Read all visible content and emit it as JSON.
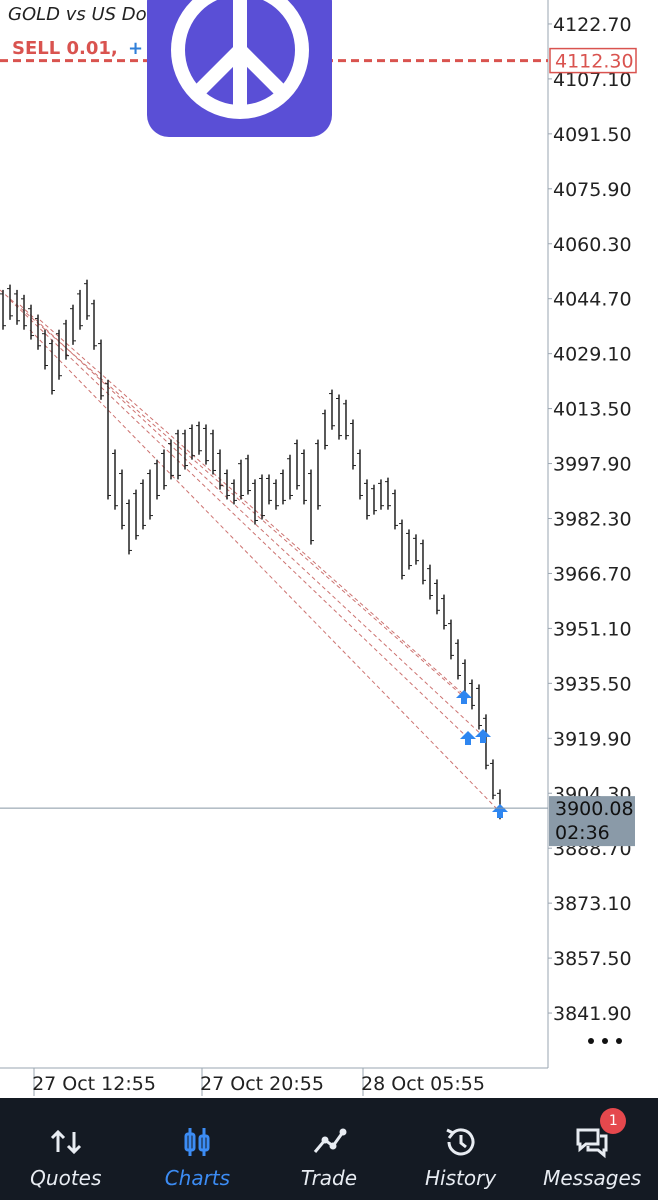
{
  "chart_data": {
    "type": "ohlc",
    "title": "GOLD vs US Doll",
    "order": {
      "label": "SELL 0.01,",
      "marker": "+",
      "price": {
        "value": 4112.3,
        "label": "4112.30"
      }
    },
    "current_price": 3900.08,
    "countdown": "02:36",
    "high": [
      4047.2,
      4048.7,
      4047.2,
      4045.8,
      4043.0,
      4040.2,
      4035.9,
      4033.1,
      4035.9,
      4038.7,
      4043.0,
      4047.2,
      4050.1,
      4044.4,
      4033.1,
      4021.7,
      4001.9,
      3996.2,
      3987.7,
      3990.5,
      3993.4,
      3996.2,
      3999.0,
      4001.9,
      4004.7,
      4007.5,
      4007.5,
      4009.0,
      4009.8,
      4009.0,
      4007.5,
      4001.9,
      3996.2,
      3993.4,
      3999.0,
      4000.4,
      3993.4,
      3994.8,
      3994.8,
      3993.4,
      3996.2,
      4000.4,
      4004.7,
      4001.9,
      3996.2,
      4004.7,
      4013.2,
      4018.9,
      4017.5,
      4016.0,
      4010.4,
      4001.9,
      3993.4,
      3991.9,
      3993.4,
      3993.9,
      3990.5,
      3982.0,
      3979.2,
      3977.8,
      3976.3,
      3969.2,
      3965.0,
      3960.7,
      3953.6,
      3948.0,
      3942.3,
      3936.6,
      3935.2,
      3926.7,
      3913.9,
      3905.4
    ],
    "low": [
      4035.9,
      4038.7,
      4037.3,
      4035.9,
      4033.1,
      4030.2,
      4024.6,
      4017.5,
      4021.7,
      4027.4,
      4031.6,
      4035.9,
      4038.7,
      4030.2,
      4016.0,
      3987.7,
      3984.8,
      3979.2,
      3972.1,
      3976.3,
      3979.2,
      3982.0,
      3987.7,
      3990.5,
      3993.4,
      3993.4,
      3996.2,
      3999.0,
      4000.4,
      3997.6,
      3994.8,
      3990.5,
      3987.7,
      3986.3,
      3987.7,
      3989.1,
      3980.6,
      3982.0,
      3986.3,
      3984.8,
      3986.3,
      3987.7,
      3990.5,
      3986.3,
      3974.9,
      3984.8,
      4001.9,
      4007.5,
      4004.7,
      4004.7,
      3996.2,
      3987.7,
      3982.0,
      3983.4,
      3984.8,
      3984.8,
      3979.2,
      3965.0,
      3967.8,
      3969.2,
      3963.6,
      3959.3,
      3955.1,
      3950.8,
      3942.3,
      3936.6,
      3931.0,
      3928.1,
      3922.4,
      3911.1,
      3902.6,
      3896.9
    ],
    "color": "#222222",
    "xlim": [
      -0.43,
      77.86
    ],
    "xticks": [
      {
        "value": 13,
        "label": "27 Oct 12:55"
      },
      {
        "value": 37,
        "label": "27 Oct 20:55"
      },
      {
        "value": 60,
        "label": "28 Oct 05:55"
      }
    ],
    "ylim": [
      3826.3,
      4129.5
    ],
    "yticks": [
      {
        "value": 4122.7,
        "label": "4122.70"
      },
      {
        "value": 4107.1,
        "label": "4107.10"
      },
      {
        "value": 4091.5,
        "label": "4091.50"
      },
      {
        "value": 4075.9,
        "label": "4075.90"
      },
      {
        "value": 4060.3,
        "label": "4060.30"
      },
      {
        "value": 4044.7,
        "label": "4044.70"
      },
      {
        "value": 4029.1,
        "label": "4029.10"
      },
      {
        "value": 4013.5,
        "label": "4013.50"
      },
      {
        "value": 3997.9,
        "label": "3997.90"
      },
      {
        "value": 3982.3,
        "label": "3982.30"
      },
      {
        "value": 3966.7,
        "label": "3966.70"
      },
      {
        "value": 3951.1,
        "label": "3951.10"
      },
      {
        "value": 3935.5,
        "label": "3935.50"
      },
      {
        "value": 3919.9,
        "label": "3919.90"
      },
      {
        "value": 3904.3,
        "label": "3904.30"
      },
      {
        "value": 3888.7,
        "label": "3888.70"
      },
      {
        "value": 3873.1,
        "label": "3873.10"
      },
      {
        "value": 3857.5,
        "label": "3857.50"
      },
      {
        "value": 3841.9,
        "label": "3841.90"
      }
    ]
  },
  "nav": {
    "items": [
      "Quotes",
      "Charts",
      "Trade",
      "History",
      "Messages"
    ],
    "badge": "1"
  }
}
